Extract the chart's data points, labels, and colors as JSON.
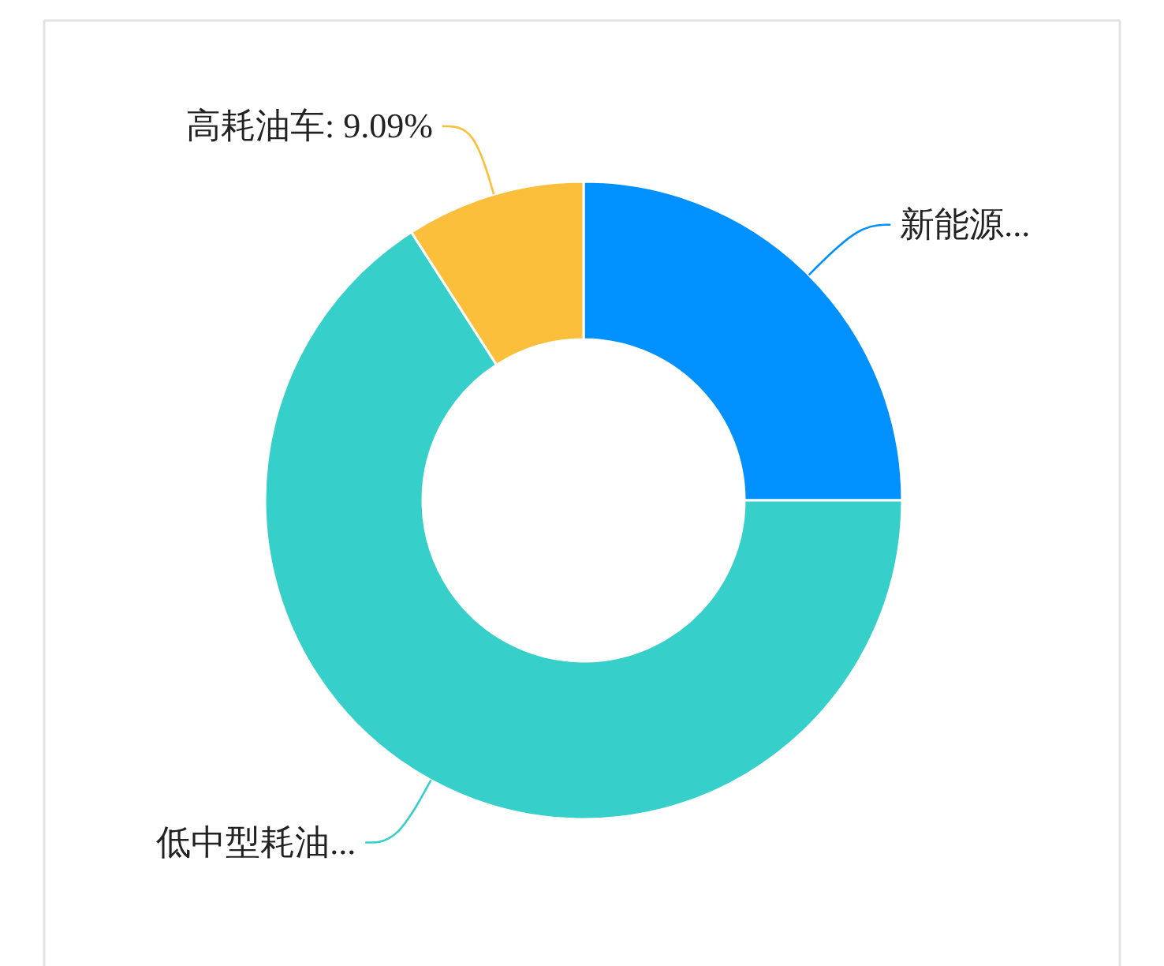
{
  "chart_data": {
    "type": "donut",
    "categories": [
      "新能源...",
      "低中型耗油...",
      "高耗油车"
    ],
    "values": [
      25,
      65.91,
      9.09
    ],
    "colors": [
      "#0091ff",
      "#36cfc9",
      "#fbbf3c"
    ],
    "value_labels": [
      null,
      null,
      "9.09%"
    ]
  }
}
